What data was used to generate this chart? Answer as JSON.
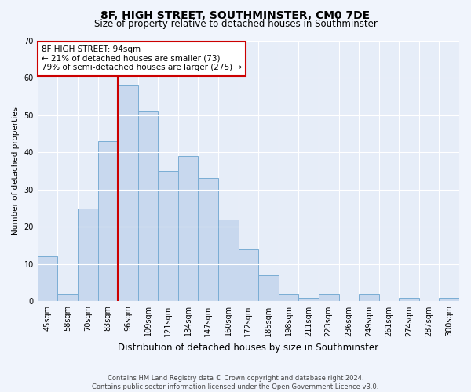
{
  "title": "8F, HIGH STREET, SOUTHMINSTER, CM0 7DE",
  "subtitle": "Size of property relative to detached houses in Southminster",
  "xlabel": "Distribution of detached houses by size in Southminster",
  "ylabel": "Number of detached properties",
  "categories": [
    "45sqm",
    "58sqm",
    "70sqm",
    "83sqm",
    "96sqm",
    "109sqm",
    "121sqm",
    "134sqm",
    "147sqm",
    "160sqm",
    "172sqm",
    "185sqm",
    "198sqm",
    "211sqm",
    "223sqm",
    "236sqm",
    "249sqm",
    "261sqm",
    "274sqm",
    "287sqm",
    "300sqm"
  ],
  "values": [
    12,
    2,
    25,
    43,
    58,
    51,
    35,
    39,
    33,
    22,
    14,
    7,
    2,
    1,
    2,
    0,
    2,
    0,
    1,
    0,
    1
  ],
  "bar_color": "#c8d8ee",
  "bar_edge_color": "#7aadd4",
  "vline_color": "#cc0000",
  "vline_x_index": 4,
  "annotation_text": "8F HIGH STREET: 94sqm\n← 21% of detached houses are smaller (73)\n79% of semi-detached houses are larger (275) →",
  "annotation_box_facecolor": "#ffffff",
  "annotation_box_edgecolor": "#cc0000",
  "ylim": [
    0,
    70
  ],
  "yticks": [
    0,
    10,
    20,
    30,
    40,
    50,
    60,
    70
  ],
  "footer_line1": "Contains HM Land Registry data © Crown copyright and database right 2024.",
  "footer_line2": "Contains public sector information licensed under the Open Government Licence v3.0.",
  "background_color": "#f0f4fc",
  "plot_background": "#e6edf8",
  "grid_color": "#ffffff",
  "title_fontsize": 10,
  "subtitle_fontsize": 8.5,
  "xlabel_fontsize": 8.5,
  "ylabel_fontsize": 7.5,
  "tick_fontsize": 7,
  "annotation_fontsize": 7.5,
  "footer_fontsize": 6
}
